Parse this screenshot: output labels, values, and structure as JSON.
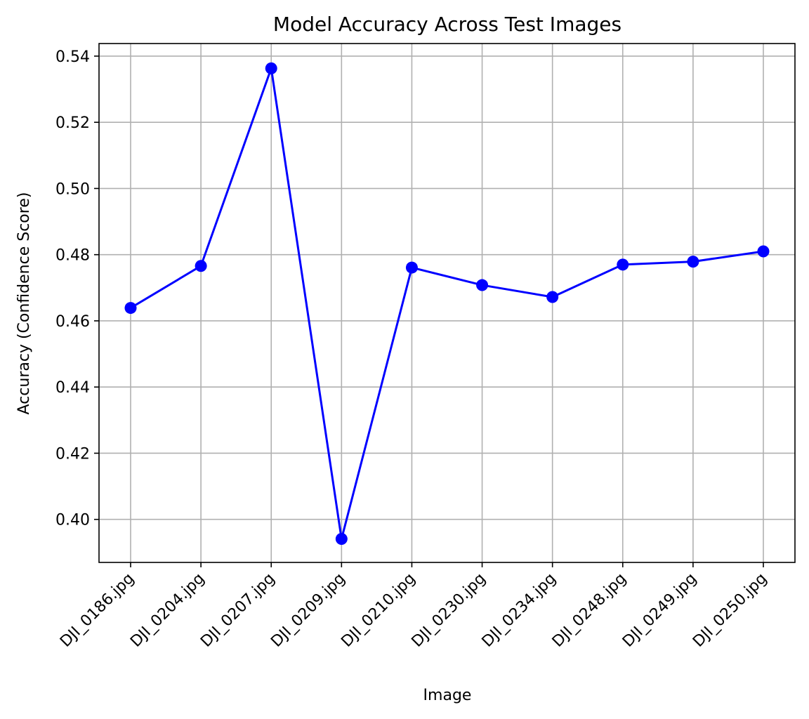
{
  "chart_data": {
    "type": "line",
    "title": "Model Accuracy Across Test Images",
    "xlabel": "Image",
    "ylabel": "Accuracy (Confidence Score)",
    "categories": [
      "DJI_0186.jpg",
      "DJI_0204.jpg",
      "DJI_0207.jpg",
      "DJI_0209.jpg",
      "DJI_0210.jpg",
      "DJI_0230.jpg",
      "DJI_0234.jpg",
      "DJI_0248.jpg",
      "DJI_0249.jpg",
      "DJI_0250.jpg"
    ],
    "series": [
      {
        "values": [
          0.4639,
          0.4766,
          0.5363,
          0.3941,
          0.4761,
          0.4708,
          0.4672,
          0.477,
          0.4779,
          0.481
        ],
        "color": "#0000ff",
        "marker": "circle"
      }
    ],
    "ylim": [
      0.387,
      0.5438
    ],
    "yticks": [
      0.4,
      0.42,
      0.44,
      0.46,
      0.48,
      0.5,
      0.52,
      0.54
    ],
    "ytick_labels": [
      "0.40",
      "0.42",
      "0.44",
      "0.46",
      "0.48",
      "0.50",
      "0.52",
      "0.54"
    ],
    "grid": true,
    "legend": false
  }
}
